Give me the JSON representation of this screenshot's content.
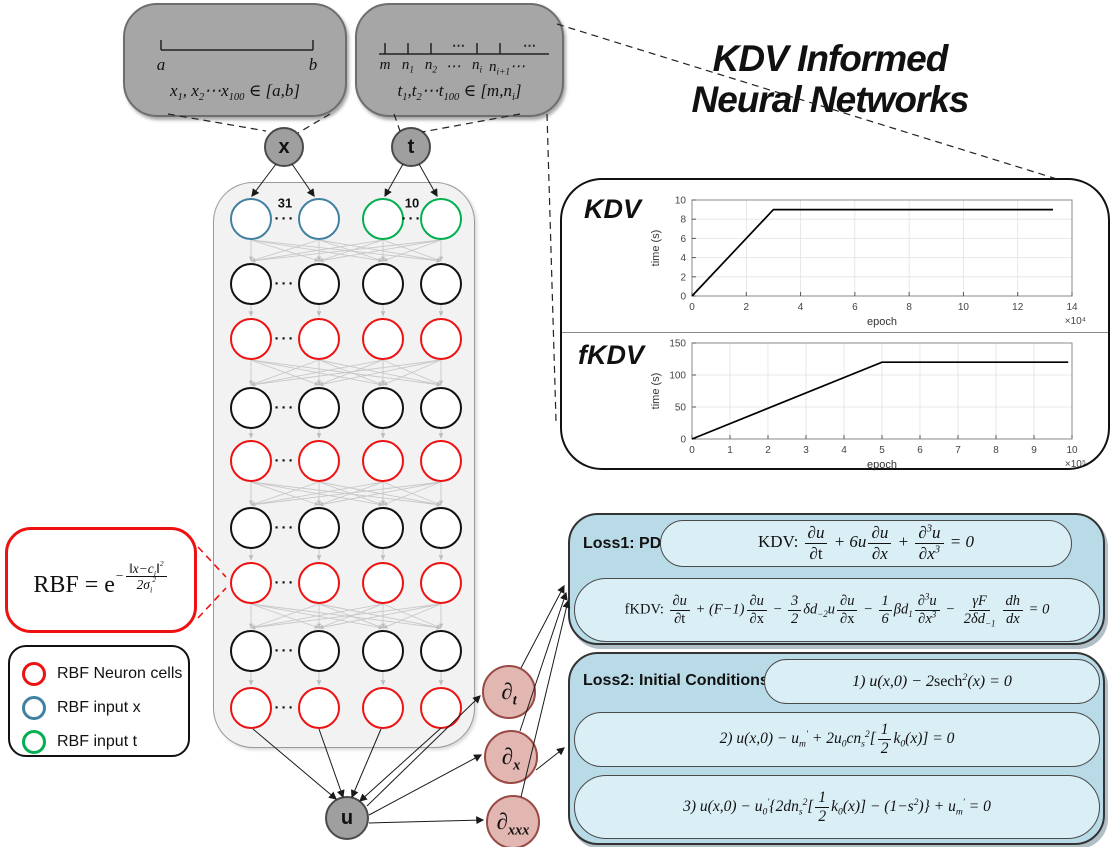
{
  "title": {
    "line1": "KDV Informed",
    "line2": "Neural Networks"
  },
  "callouts": {
    "x_box": {
      "left_tick": "a",
      "right_tick": "b",
      "samples": "x_{1}, x_{2}⋯x_{100} ∈ [a,b]"
    },
    "t_box": {
      "tick_labels": [
        "m",
        "n_{1}",
        "n_{2}",
        "⋯",
        "n_{i}",
        "n_{i+1}⋯"
      ],
      "samples": "t_{1},t_{2}⋯t_{100} ∈ [m,n_{i}]"
    }
  },
  "nodes": {
    "x": "x",
    "t": "t",
    "u": "u",
    "dt": "∂_{t}",
    "dx": "∂_{x}",
    "dxxx": "∂_{xxx}"
  },
  "network": {
    "x_width_label": "31",
    "t_width_label": "10",
    "rows": [
      [
        "blue",
        "blue",
        "green",
        "green"
      ],
      [
        "black",
        "black",
        "black",
        "black"
      ],
      [
        "red",
        "red",
        "red",
        "red"
      ],
      [
        "black",
        "black",
        "black",
        "black"
      ],
      [
        "red",
        "red",
        "red",
        "red"
      ],
      [
        "black",
        "black",
        "black",
        "black"
      ],
      [
        "red",
        "red",
        "red",
        "red"
      ],
      [
        "black",
        "black",
        "black",
        "black"
      ],
      [
        "red",
        "red",
        "red",
        "red"
      ]
    ]
  },
  "colors": {
    "rbf_red": "#ee1111",
    "input_x_blue": "#4080a0",
    "input_t_green": "#00b050",
    "hidden_black": "#111111",
    "node_gray": "#9f9f9f",
    "partial_pink": "#e2b6b1",
    "partial_border": "#994a44",
    "loss_bg": "#b9dbe7",
    "pill_bg": "#daeef6",
    "callout_gray": "#a6a6a6"
  },
  "rbf_formula": "\\up{RBF = e}^{−\\f{‖x−c_{i}‖^{2}}{2σ_{i}^{2}}}",
  "legend": {
    "items": [
      {
        "color": "#ee1111",
        "label": "RBF Neuron cells"
      },
      {
        "color": "#4080a0",
        "label": "RBF input x"
      },
      {
        "color": "#00b050",
        "label": "RBF input t"
      }
    ]
  },
  "loss1": {
    "label": "Loss1: PDE",
    "kdv_equation": "\\up{KDV: }\\f{∂u}{∂\\up{t}} + 6u\\f{∂u}{∂x} + \\f{∂^{3}u}{∂x^{3}} = 0",
    "fkdv_equation": "\\up{fKDV: }\\f{∂u}{∂\\up{t}} + (F−1)\\f{∂u}{∂\\up{x}} − \\f{3}{2}δd_{−2}u\\f{∂u}{∂\\up{x}} − \\f{1}{6}βd_{1}\\f{∂^{3}u}{∂x^{3}} − \\f{γF}{2δd_{−1}}\\f{dh}{dx} = 0"
  },
  "loss2": {
    "label": "Loss2: Initial Conditions",
    "items": [
      "1)  u(x,0) − 2\\up{sech}^{2}(x) = 0",
      "2)  u(x,0) − u_{m}^{′} + 2u_{0}cn_{s}^{2}[\\f{1}{2}k_{0}(x)] = 0",
      "3)  u(x,0) − u_{0}^{′}{2dn_{s}^{2}[\\f{1}{2}k_{0}(x)] − (1−s^{2})} + u_{m}^{′} = 0"
    ]
  },
  "chart_data": [
    {
      "type": "line",
      "title": "KDV",
      "xlabel": "epoch",
      "ylabel": "time (s)",
      "x_scale_label": "×10⁴",
      "xlim": [
        0,
        14
      ],
      "ylim": [
        0,
        10
      ],
      "xticks": [
        0,
        2,
        4,
        6,
        8,
        10,
        12,
        14
      ],
      "yticks": [
        0,
        2,
        4,
        6,
        8,
        10
      ],
      "grid": true,
      "legend_position": "none",
      "points": [
        [
          0,
          0
        ],
        [
          3,
          9
        ],
        [
          13.3,
          9
        ]
      ]
    },
    {
      "type": "line",
      "title": "fKDV",
      "xlabel": "epoch",
      "ylabel": "time (s)",
      "x_scale_label": "×10⁵",
      "xlim": [
        0,
        10
      ],
      "ylim": [
        0,
        150
      ],
      "xticks": [
        0,
        1,
        2,
        3,
        4,
        5,
        6,
        7,
        8,
        9,
        10
      ],
      "yticks": [
        0,
        50,
        100,
        150
      ],
      "grid": true,
      "legend_position": "none",
      "points": [
        [
          0,
          0
        ],
        [
          5,
          120
        ],
        [
          9.9,
          120
        ]
      ]
    }
  ]
}
